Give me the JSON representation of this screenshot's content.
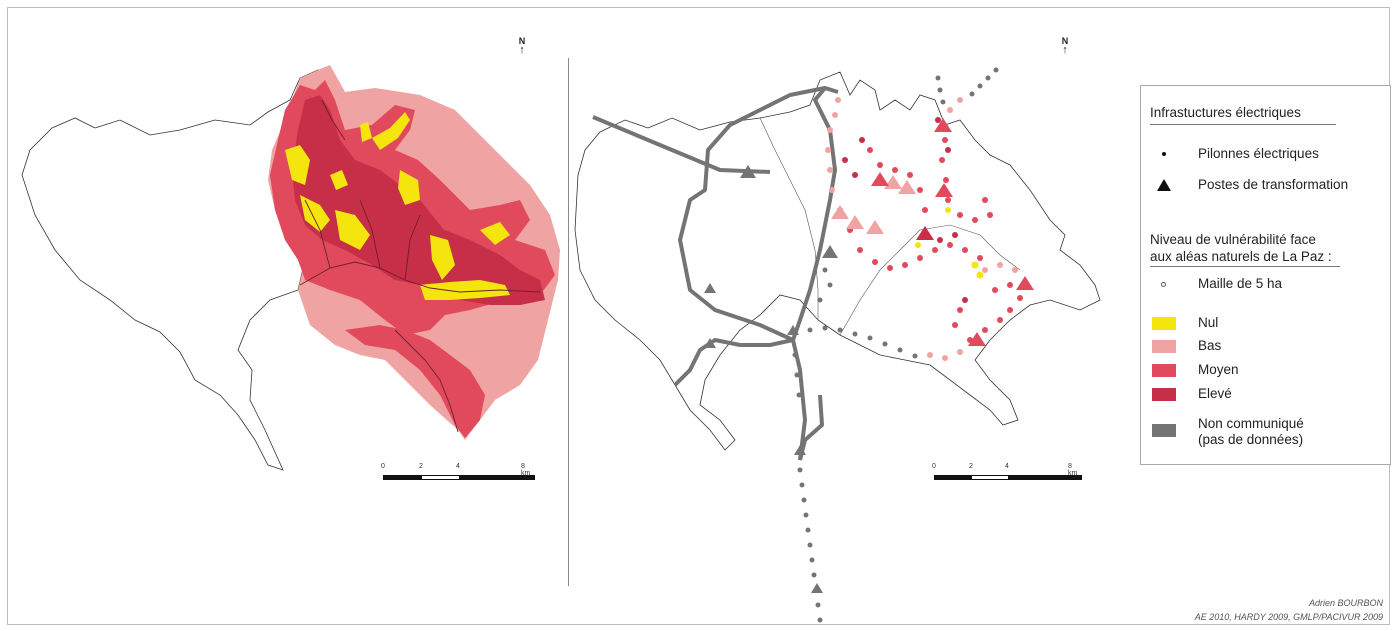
{
  "north_label": "N",
  "left_map": {
    "scale": {
      "ticks": [
        "0",
        "2",
        "4",
        "8 km"
      ]
    }
  },
  "right_map": {
    "scale": {
      "ticks": [
        "0",
        "2",
        "4",
        "8 km"
      ]
    }
  },
  "legend": {
    "section_infra": "Infrastuctures électriques",
    "pylons": "Pilonnes électriques",
    "substations": "Postes de transformation",
    "section_vuln": "Niveau de vulnérabilité face aux aléas naturels de La Paz :",
    "grid_cell": "Maille de 5 ha",
    "classes": [
      {
        "label": "Nul",
        "color": "#f5e50f"
      },
      {
        "label": "Bas",
        "color": "#f0a3a3"
      },
      {
        "label": "Moyen",
        "color": "#e04a5c"
      },
      {
        "label": "Elevé",
        "color": "#c62f47"
      },
      {
        "label": "Non communiqué (pas de données)",
        "label_line1": "Non communiqué",
        "label_line2": "(pas de données)",
        "color": "#747474"
      }
    ]
  },
  "credits": {
    "author": "Adrien BOURBON",
    "sources": "AE 2010, HARDY 2009, GMLP/PACIVUR 2009"
  }
}
